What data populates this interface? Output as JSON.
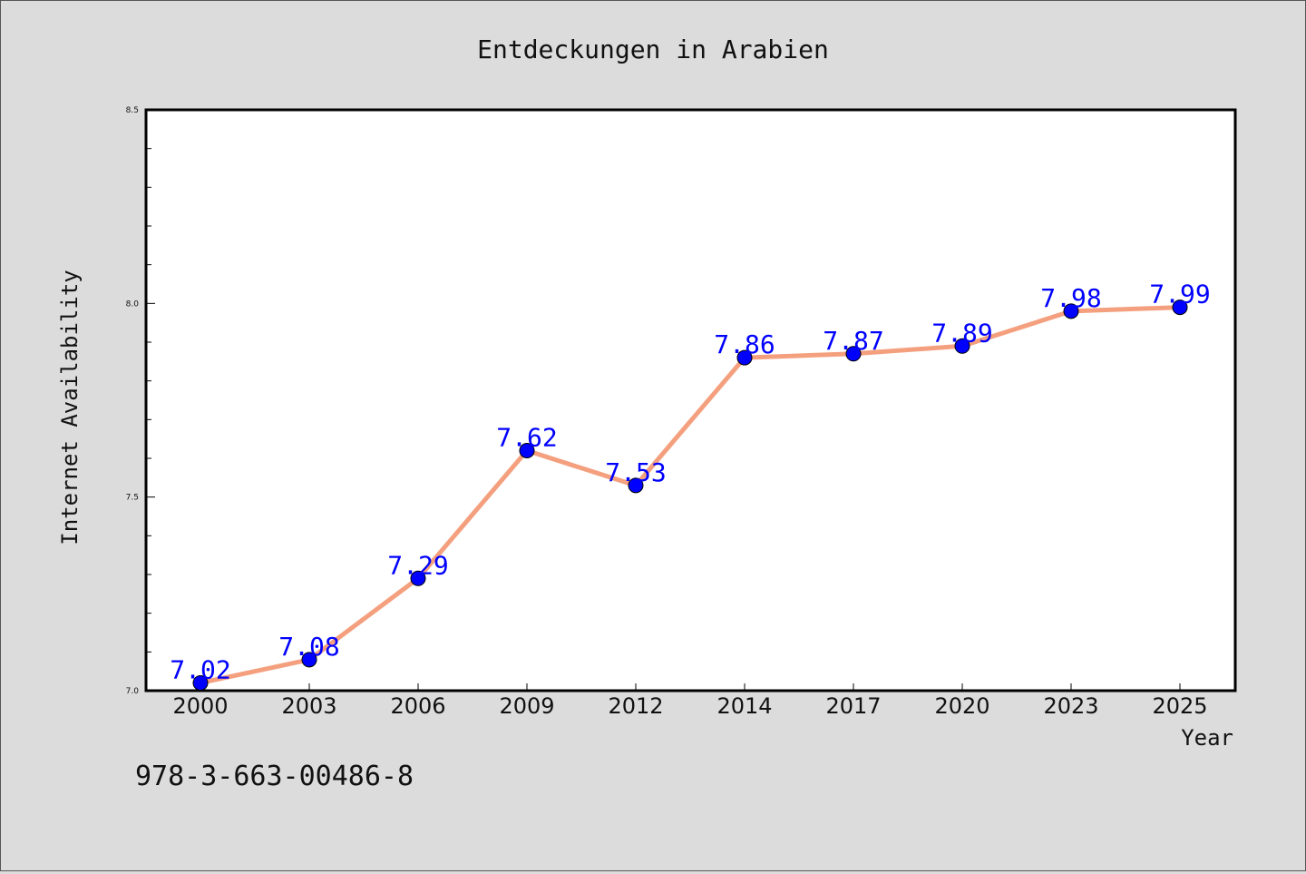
{
  "chart_data": {
    "type": "line",
    "title": "Entdeckungen in Arabien",
    "xlabel": "Year",
    "ylabel": "Internet Availability",
    "categories": [
      "2000",
      "2003",
      "2006",
      "2009",
      "2012",
      "2014",
      "2017",
      "2020",
      "2023",
      "2025"
    ],
    "series": [
      {
        "values": [
          7.02,
          7.08,
          7.29,
          7.62,
          7.53,
          7.86,
          7.87,
          7.89,
          7.98,
          7.99
        ]
      }
    ],
    "data_labels": [
      "7.02",
      "7.08",
      "7.29",
      "7.62",
      "7.53",
      "7.86",
      "7.87",
      "7.89",
      "7.98",
      "7.99"
    ],
    "ylim": [
      7.0,
      8.5
    ],
    "yticks": [
      "7.0",
      "7.5",
      "8.0",
      "8.5"
    ],
    "grid": false,
    "line_color": "#f4a07e",
    "marker_color": "#0000ff",
    "label_color": "#0000ff"
  },
  "footer": {
    "isbn": "978-3-663-00486-8"
  }
}
